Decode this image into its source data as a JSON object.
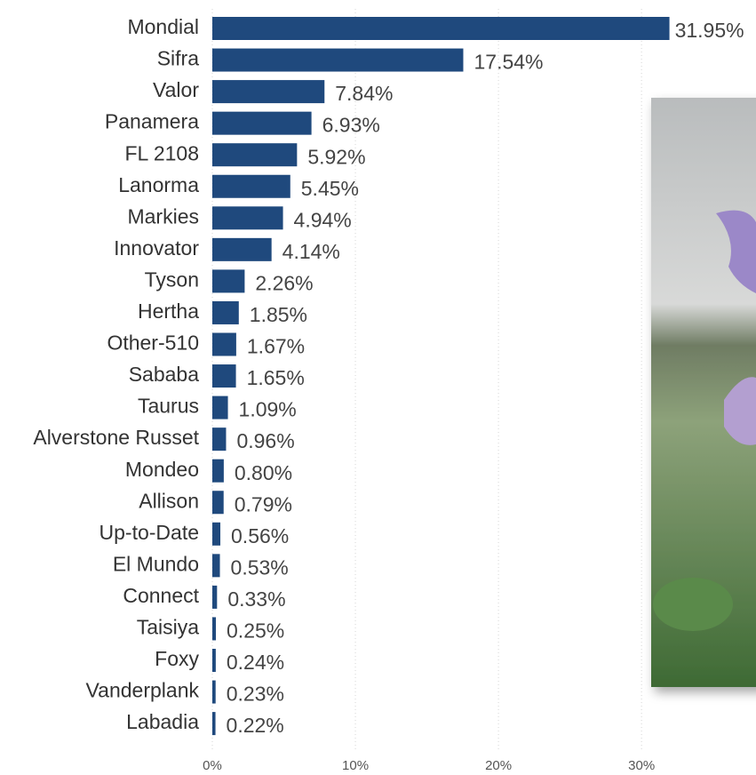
{
  "chart_data": {
    "type": "bar",
    "orientation": "horizontal",
    "categories": [
      "Mondial",
      "Sifra",
      "Valor",
      "Panamera",
      "FL 2108",
      "Lanorma",
      "Markies",
      "Innovator",
      "Tyson",
      "Hertha",
      "Other-510",
      "Sababa",
      "Taurus",
      "Alverstone Russet",
      "Mondeo",
      "Allison",
      "Up-to-Date",
      "El Mundo",
      "Connect",
      "Taisiya",
      "Foxy",
      "Vanderplank",
      "Labadia"
    ],
    "values": [
      31.95,
      17.54,
      7.84,
      6.93,
      5.92,
      5.45,
      4.94,
      4.14,
      2.26,
      1.85,
      1.67,
      1.65,
      1.09,
      0.96,
      0.8,
      0.79,
      0.56,
      0.53,
      0.33,
      0.25,
      0.24,
      0.23,
      0.22
    ],
    "value_labels": [
      "31.95%",
      "17.54%",
      "7.84%",
      "6.93%",
      "5.92%",
      "5.45%",
      "4.94%",
      "4.14%",
      "2.26%",
      "1.85%",
      "1.67%",
      "1.65%",
      "1.09%",
      "0.96%",
      "0.80%",
      "0.79%",
      "0.56%",
      "0.53%",
      "0.33%",
      "0.25%",
      "0.24%",
      "0.23%",
      "0.22%"
    ],
    "color": "#1f497d",
    "xlim": [
      0,
      38
    ],
    "xticks": [
      {
        "value": 0,
        "label": "0%"
      },
      {
        "value": 10,
        "label": "10%"
      },
      {
        "value": 20,
        "label": "20%"
      },
      {
        "value": 30,
        "label": "30%"
      }
    ],
    "grid": true
  }
}
